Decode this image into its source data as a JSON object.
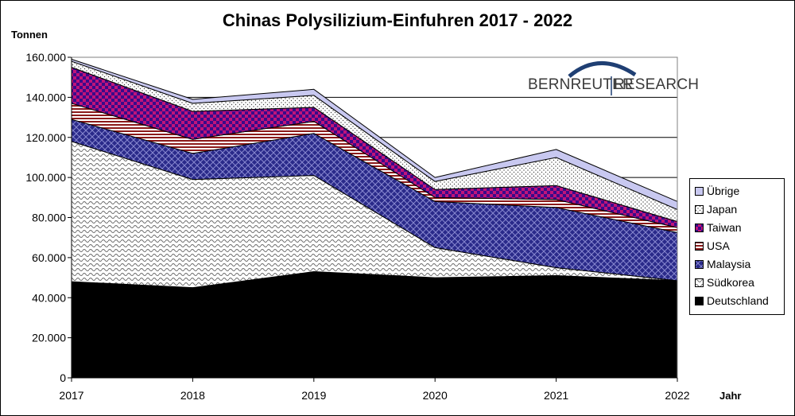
{
  "chart_data": {
    "type": "area",
    "stacked": true,
    "title": "Chinas Polysilizium-Einfuhren 2017 - 2022",
    "ylabel": "Tonnen",
    "xlabel": "Jahr",
    "x": [
      "2017",
      "2018",
      "2019",
      "2020",
      "2021",
      "2022"
    ],
    "ylim": [
      0,
      160000
    ],
    "yticks": [
      "0",
      "20.000",
      "40.000",
      "60.000",
      "80.000",
      "100.000",
      "120.000",
      "140.000",
      "160.000"
    ],
    "grid": true,
    "legend_position": "right",
    "series": [
      {
        "name": "Deutschland",
        "values": [
          48000,
          45000,
          53000,
          50000,
          51000,
          48500
        ],
        "color": "#000000",
        "pattern": "solid"
      },
      {
        "name": "Südkorea",
        "values": [
          70000,
          54000,
          48000,
          15000,
          4000,
          0
        ],
        "color": "#888888",
        "pattern": "wave"
      },
      {
        "name": "Malaysia",
        "values": [
          11000,
          13000,
          21000,
          23000,
          30000,
          24000
        ],
        "color": "#2a2a8a",
        "pattern": "diamond"
      },
      {
        "name": "USA",
        "values": [
          8000,
          7000,
          6000,
          2000,
          4000,
          2500
        ],
        "color": "#8b1a1a",
        "pattern": "hstripe"
      },
      {
        "name": "Taiwan",
        "values": [
          18000,
          14000,
          7000,
          4000,
          7000,
          3000
        ],
        "color": "#c0147a",
        "pattern": "check"
      },
      {
        "name": "Japan",
        "values": [
          3000,
          4000,
          6000,
          4000,
          14000,
          6000
        ],
        "color": "#555555",
        "pattern": "dots"
      },
      {
        "name": "Übrige",
        "values": [
          1000,
          2000,
          3000,
          2000,
          4000,
          4000
        ],
        "color": "#c8c8f0",
        "pattern": "solid"
      }
    ]
  },
  "logo": {
    "left": "BERNREUTER",
    "right": "RESEARCH",
    "arc_color": "#1f3f73"
  }
}
